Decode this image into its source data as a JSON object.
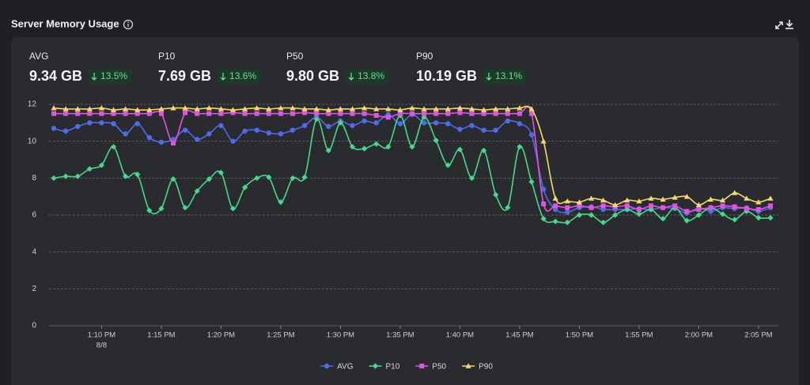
{
  "chart_data": {
    "type": "line",
    "title": "Server Memory Usage",
    "stats": [
      {
        "label": "AVG",
        "value": "9.34 GB",
        "change": "13.5%"
      },
      {
        "label": "P10",
        "value": "7.69 GB",
        "change": "13.6%"
      },
      {
        "label": "P50",
        "value": "9.80 GB",
        "change": "13.8%"
      },
      {
        "label": "P90",
        "value": "10.19 GB",
        "change": "13.1%"
      }
    ],
    "x": [
      "1:06 PM",
      "1:07 PM",
      "1:08 PM",
      "1:09 PM",
      "1:10 PM",
      "1:11 PM",
      "1:12 PM",
      "1:13 PM",
      "1:14 PM",
      "1:15 PM",
      "1:16 PM",
      "1:17 PM",
      "1:18 PM",
      "1:19 PM",
      "1:20 PM",
      "1:21 PM",
      "1:22 PM",
      "1:23 PM",
      "1:24 PM",
      "1:25 PM",
      "1:26 PM",
      "1:27 PM",
      "1:28 PM",
      "1:29 PM",
      "1:30 PM",
      "1:31 PM",
      "1:32 PM",
      "1:33 PM",
      "1:34 PM",
      "1:35 PM",
      "1:36 PM",
      "1:37 PM",
      "1:38 PM",
      "1:39 PM",
      "1:40 PM",
      "1:41 PM",
      "1:42 PM",
      "1:43 PM",
      "1:44 PM",
      "1:45 PM",
      "1:46 PM",
      "1:47 PM",
      "1:48 PM",
      "1:49 PM",
      "1:50 PM",
      "1:51 PM",
      "1:52 PM",
      "1:53 PM",
      "1:54 PM",
      "1:55 PM",
      "1:56 PM",
      "1:57 PM",
      "1:58 PM",
      "1:59 PM",
      "2:00 PM",
      "2:01 PM",
      "2:02 PM",
      "2:03 PM",
      "2:04 PM",
      "2:05 PM",
      "2:06 PM"
    ],
    "xticks": [
      "1:10 PM",
      "1:15 PM",
      "1:20 PM",
      "1:25 PM",
      "1:30 PM",
      "1:35 PM",
      "1:40 PM",
      "1:45 PM",
      "1:50 PM",
      "1:55 PM",
      "2:00 PM",
      "2:05 PM"
    ],
    "x_date_label": "8/8",
    "ylim": [
      0,
      12
    ],
    "yticks": [
      0,
      2,
      4,
      6,
      8,
      10,
      12
    ],
    "grid": true,
    "series": [
      {
        "name": "AVG",
        "color": "#4f6bed",
        "marker": "circle",
        "values": [
          10.7,
          10.55,
          10.8,
          11.0,
          11.0,
          10.95,
          10.4,
          10.95,
          10.2,
          9.95,
          10.1,
          10.6,
          10.1,
          10.4,
          10.85,
          10.0,
          10.55,
          10.6,
          10.45,
          10.4,
          10.6,
          10.85,
          11.3,
          10.8,
          11.1,
          10.85,
          11.1,
          11.0,
          11.45,
          10.95,
          11.45,
          11.0,
          11.0,
          10.95,
          10.65,
          10.85,
          10.6,
          10.6,
          11.1,
          10.95,
          10.35,
          7.4,
          6.3,
          6.15,
          6.4,
          6.45,
          6.3,
          6.3,
          6.3,
          6.35,
          6.3,
          6.4,
          6.35,
          6.1,
          6.4,
          6.2,
          6.4,
          6.35,
          6.4,
          6.2,
          6.4
        ]
      },
      {
        "name": "P10",
        "color": "#45d98b",
        "marker": "diamond",
        "values": [
          8.0,
          8.1,
          8.1,
          8.5,
          8.7,
          9.7,
          8.1,
          8.2,
          6.25,
          6.35,
          7.95,
          6.4,
          7.3,
          7.95,
          8.3,
          6.35,
          7.5,
          8.0,
          8.05,
          6.7,
          8.0,
          8.05,
          11.2,
          9.5,
          11.0,
          9.7,
          9.6,
          9.85,
          9.7,
          11.4,
          9.7,
          11.3,
          10.05,
          8.7,
          9.55,
          8.0,
          9.5,
          7.1,
          6.4,
          9.7,
          7.8,
          5.8,
          5.65,
          5.6,
          6.0,
          6.0,
          5.6,
          6.0,
          6.3,
          6.05,
          6.3,
          5.8,
          6.4,
          5.7,
          6.0,
          6.4,
          6.05,
          5.75,
          6.2,
          5.85,
          5.85
        ]
      },
      {
        "name": "P50",
        "color": "#e254e0",
        "marker": "square",
        "values": [
          11.5,
          11.5,
          11.5,
          11.5,
          11.5,
          11.5,
          11.5,
          11.5,
          11.5,
          11.5,
          9.9,
          11.55,
          11.5,
          11.5,
          11.5,
          11.55,
          11.5,
          11.5,
          11.5,
          11.5,
          11.5,
          11.55,
          11.5,
          11.5,
          11.5,
          11.5,
          11.5,
          11.4,
          11.3,
          11.5,
          11.5,
          11.5,
          11.5,
          11.5,
          11.55,
          11.5,
          11.5,
          11.5,
          11.5,
          11.5,
          11.5,
          6.6,
          6.5,
          6.4,
          6.5,
          6.4,
          6.5,
          6.45,
          6.5,
          6.3,
          6.5,
          6.4,
          6.5,
          6.2,
          6.3,
          6.4,
          6.5,
          6.45,
          6.35,
          6.3,
          6.5
        ]
      },
      {
        "name": "P90",
        "color": "#f5d96b",
        "marker": "triangle",
        "values": [
          11.8,
          11.75,
          11.75,
          11.75,
          11.8,
          11.7,
          11.75,
          11.7,
          11.7,
          11.75,
          11.8,
          11.8,
          11.75,
          11.8,
          11.75,
          11.7,
          11.75,
          11.8,
          11.75,
          11.8,
          11.8,
          11.75,
          11.75,
          11.7,
          11.75,
          11.75,
          11.8,
          11.75,
          11.75,
          11.7,
          11.8,
          11.75,
          11.75,
          11.75,
          11.8,
          11.75,
          11.7,
          11.75,
          11.75,
          11.8,
          11.75,
          10.0,
          6.9,
          6.75,
          6.7,
          6.9,
          6.8,
          6.55,
          6.8,
          6.75,
          6.9,
          6.85,
          6.95,
          7.0,
          6.55,
          6.85,
          6.8,
          7.2,
          6.9,
          6.7,
          6.9
        ]
      }
    ]
  }
}
